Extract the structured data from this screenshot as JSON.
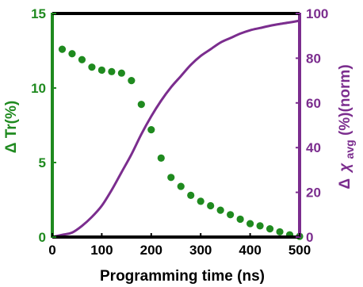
{
  "chart_data": {
    "type": "scatter+line",
    "xlabel": "Programming time (ns)",
    "ylabel_left": {
      "prefix": "Δ",
      "main": "Tr(%)"
    },
    "ylabel_right": {
      "prefix": "Δ",
      "chi": "χ",
      "sub": "avg",
      "suffix": "(%)(norm)"
    },
    "x_ticks": [
      0,
      100,
      200,
      300,
      400,
      500
    ],
    "y_left_ticks": [
      0,
      5,
      10,
      15
    ],
    "y_right_ticks": [
      0,
      20,
      40,
      60,
      80,
      100
    ],
    "xlim": [
      0,
      500
    ],
    "ylim_left": [
      0,
      15
    ],
    "ylim_right": [
      0,
      100
    ],
    "grid": false,
    "colors": {
      "left_axis": "#1f8a1f",
      "right_axis": "#7b2d8e",
      "scatter": "#1f8a1f",
      "line": "#7b2d8e",
      "bottom_axis": "#000000"
    },
    "series": [
      {
        "axis": "left",
        "kind": "scatter",
        "x": [
          20,
          40,
          60,
          80,
          100,
          120,
          140,
          160,
          180,
          200,
          220,
          240,
          260,
          280,
          300,
          320,
          340,
          360,
          380,
          400,
          420,
          440,
          460,
          480,
          500
        ],
        "y": [
          12.6,
          12.3,
          11.9,
          11.4,
          11.2,
          11.1,
          11.0,
          10.5,
          8.9,
          7.2,
          5.3,
          4.0,
          3.4,
          2.8,
          2.4,
          2.1,
          1.8,
          1.5,
          1.2,
          0.9,
          0.75,
          0.55,
          0.35,
          0.15,
          0.05
        ]
      },
      {
        "axis": "right",
        "kind": "line",
        "x": [
          0,
          20,
          40,
          60,
          80,
          100,
          120,
          140,
          160,
          180,
          200,
          220,
          240,
          260,
          280,
          300,
          320,
          340,
          360,
          380,
          400,
          420,
          440,
          460,
          480,
          500
        ],
        "y": [
          0,
          1,
          2,
          5,
          9,
          14,
          21,
          29,
          37,
          46,
          54,
          61,
          67,
          72,
          77,
          81,
          84,
          87,
          89,
          91,
          92.5,
          93.5,
          94.5,
          95.3,
          96,
          96.8
        ]
      }
    ]
  }
}
